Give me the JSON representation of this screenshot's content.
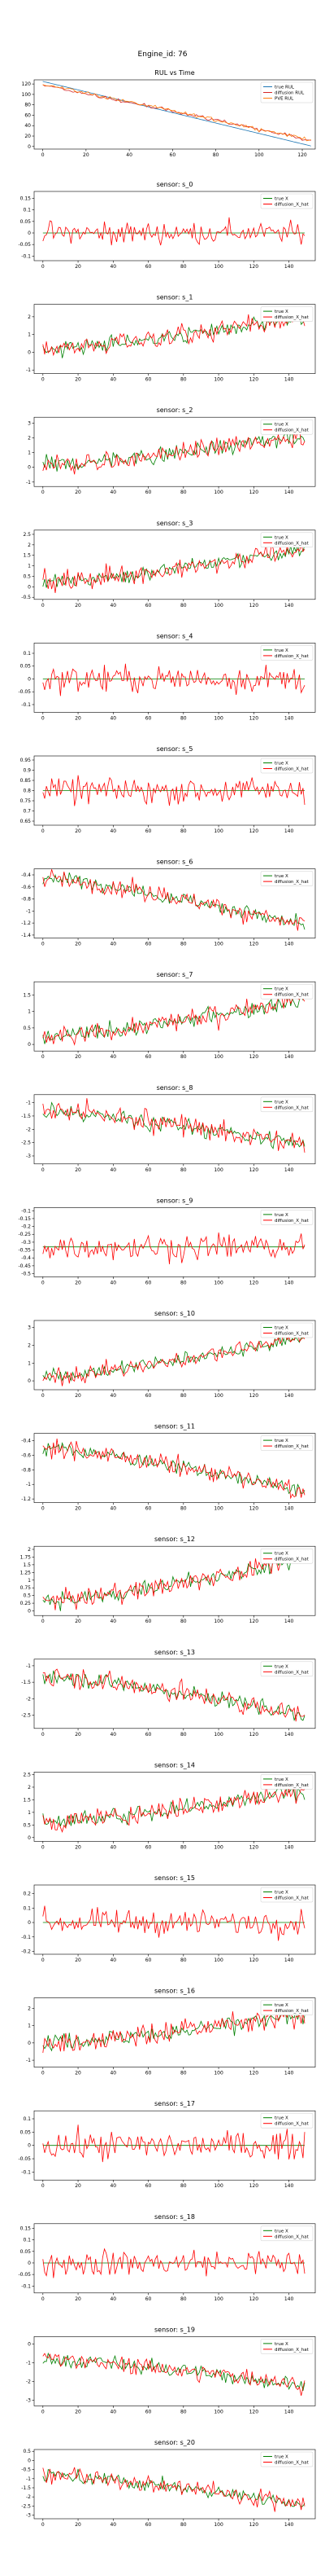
{
  "suptitle": "Engine_id: 76",
  "chart_data": [
    {
      "type": "line",
      "title": "RUL vs Time",
      "n": 125,
      "xticks": [
        0,
        20,
        40,
        60,
        80,
        100,
        120
      ],
      "xlim": [
        -4,
        126
      ],
      "yticks": [
        0,
        20,
        40,
        60,
        80,
        100,
        120
      ],
      "ylim": [
        -5,
        128
      ],
      "legend": [
        "true RUL",
        "diffusion RUL",
        "PVE RUL"
      ],
      "legend_position": "top-right",
      "series": [
        {
          "name": "true RUL",
          "color": "#1f77b4",
          "start": 125,
          "end": 1
        },
        {
          "name": "diffusion RUL",
          "color": "#d62728",
          "start": 119,
          "end": 12
        },
        {
          "name": "PVE RUL",
          "color": "#ff7f0e",
          "start": 120,
          "end": 13
        }
      ]
    },
    {
      "type": "line",
      "title": "sensor: s_0",
      "n": 150,
      "xticks": [
        0,
        20,
        40,
        60,
        80,
        100,
        120,
        140
      ],
      "xlim": [
        -5,
        155
      ],
      "yticks": [
        -0.1,
        -0.05,
        0,
        0.05,
        0.1,
        0.15
      ],
      "ylim": [
        -0.12,
        0.18
      ],
      "trend": [
        0,
        0
      ],
      "noise": 0.045,
      "legend": [
        "true X",
        "diffusion_X_hat"
      ],
      "legend_position": "top-right",
      "true_color": "#008000",
      "pred_color": "#ff0000",
      "flat_true": true
    },
    {
      "type": "line",
      "title": "sensor: s_1",
      "n": 150,
      "xticks": [
        0,
        20,
        40,
        60,
        80,
        100,
        120,
        140
      ],
      "xlim": [
        -5,
        155
      ],
      "yticks": [
        -1,
        0,
        1,
        2
      ],
      "ylim": [
        -1.2,
        2.7
      ],
      "trend": [
        0.2,
        1.9
      ],
      "noise": 0.55,
      "legend": [
        "true X",
        "diffusion_X_hat"
      ],
      "legend_position": "top-right",
      "true_color": "#008000",
      "pred_color": "#ff0000",
      "flat_true": false
    },
    {
      "type": "line",
      "title": "sensor: s_2",
      "n": 150,
      "xticks": [
        0,
        20,
        40,
        60,
        80,
        100,
        120,
        140
      ],
      "xlim": [
        -5,
        155
      ],
      "yticks": [
        -1,
        0,
        1,
        2,
        3
      ],
      "ylim": [
        -1.3,
        3.4
      ],
      "trend": [
        0.1,
        2.2
      ],
      "noise": 0.65,
      "legend": [
        "true X",
        "diffusion_X_hat"
      ],
      "legend_position": "top-right",
      "true_color": "#008000",
      "pred_color": "#ff0000",
      "flat_true": false
    },
    {
      "type": "line",
      "title": "sensor: s_3",
      "n": 150,
      "xticks": [
        0,
        20,
        40,
        60,
        80,
        100,
        120,
        140
      ],
      "xlim": [
        -5,
        155
      ],
      "yticks": [
        -0.5,
        0,
        0.5,
        1,
        1.5,
        2,
        2.5
      ],
      "ylim": [
        -0.6,
        2.7
      ],
      "trend": [
        0.2,
        1.8
      ],
      "noise": 0.45,
      "legend": [
        "true X",
        "diffusion_X_hat"
      ],
      "legend_position": "top-right",
      "true_color": "#008000",
      "pred_color": "#ff0000",
      "flat_true": false
    },
    {
      "type": "line",
      "title": "sensor: s_4",
      "n": 150,
      "xticks": [
        0,
        20,
        40,
        60,
        80,
        100,
        120,
        140
      ],
      "xlim": [
        -5,
        155
      ],
      "yticks": [
        -0.1,
        -0.05,
        0,
        0.05,
        0.1
      ],
      "ylim": [
        -0.13,
        0.14
      ],
      "trend": [
        0,
        0
      ],
      "noise": 0.05,
      "legend": [
        "true X",
        "diffusion_X_hat"
      ],
      "legend_position": "top-right",
      "true_color": "#008000",
      "pred_color": "#ff0000",
      "flat_true": true
    },
    {
      "type": "line",
      "title": "sensor: s_5",
      "n": 150,
      "xticks": [
        0,
        20,
        40,
        60,
        80,
        100,
        120,
        140
      ],
      "xlim": [
        -5,
        155
      ],
      "yticks": [
        0.65,
        0.7,
        0.75,
        0.8,
        0.85,
        0.9,
        0.95
      ],
      "ylim": [
        0.63,
        0.97
      ],
      "trend": [
        0.8,
        0.8
      ],
      "noise": 0.06,
      "legend": [
        "true X",
        "diffusion_X_hat"
      ],
      "legend_position": "top-right",
      "true_color": "#008000",
      "pred_color": "#ff0000",
      "flat_true": true
    },
    {
      "type": "line",
      "title": "sensor: s_6",
      "n": 150,
      "xticks": [
        0,
        20,
        40,
        60,
        80,
        100,
        120,
        140
      ],
      "xlim": [
        -5,
        155
      ],
      "yticks": [
        -1.4,
        -1.2,
        -1,
        -0.8,
        -0.6,
        -0.4
      ],
      "ylim": [
        -1.45,
        -0.3
      ],
      "trend": [
        -0.45,
        -1.25
      ],
      "noise": 0.14,
      "legend": [
        "true X",
        "diffusion_X_hat"
      ],
      "legend_position": "top-right",
      "true_color": "#008000",
      "pred_color": "#ff0000",
      "flat_true": false
    },
    {
      "type": "line",
      "title": "sensor: s_7",
      "n": 150,
      "xticks": [
        0,
        20,
        40,
        60,
        80,
        100,
        120,
        140
      ],
      "xlim": [
        -5,
        155
      ],
      "yticks": [
        0,
        0.5,
        1,
        1.5
      ],
      "ylim": [
        -0.2,
        1.9
      ],
      "trend": [
        0.2,
        1.4
      ],
      "noise": 0.3,
      "legend": [
        "true X",
        "diffusion_X_hat"
      ],
      "legend_position": "top-right",
      "true_color": "#008000",
      "pred_color": "#ff0000",
      "flat_true": false
    },
    {
      "type": "line",
      "title": "sensor: s_8",
      "n": 150,
      "xticks": [
        0,
        20,
        40,
        60,
        80,
        100,
        120,
        140
      ],
      "xlim": [
        -5,
        155
      ],
      "yticks": [
        -3,
        -2.5,
        -2,
        -1.5,
        -1
      ],
      "ylim": [
        -3.3,
        -0.7
      ],
      "trend": [
        -1.3,
        -2.6
      ],
      "noise": 0.4,
      "legend": [
        "true X",
        "diffusion_X_hat"
      ],
      "legend_position": "top-right",
      "true_color": "#008000",
      "pred_color": "#ff0000",
      "flat_true": false
    },
    {
      "type": "line",
      "title": "sensor: s_9",
      "n": 150,
      "xticks": [
        0,
        20,
        40,
        60,
        80,
        100,
        120,
        140
      ],
      "xlim": [
        -5,
        155
      ],
      "yticks": [
        -0.5,
        -0.45,
        -0.4,
        -0.35,
        -0.3,
        -0.25,
        -0.2,
        -0.15,
        -0.1
      ],
      "ylim": [
        -0.52,
        -0.08
      ],
      "trend": [
        -0.33,
        -0.33
      ],
      "noise": 0.08,
      "legend": [
        "true X",
        "diffusion_X_hat"
      ],
      "legend_position": "top-right",
      "true_color": "#008000",
      "pred_color": "#ff0000",
      "flat_true": true
    },
    {
      "type": "line",
      "title": "sensor: s_10",
      "n": 150,
      "xticks": [
        0,
        20,
        40,
        60,
        80,
        100,
        120,
        140
      ],
      "xlim": [
        -5,
        155
      ],
      "yticks": [
        0,
        1,
        2,
        3
      ],
      "ylim": [
        -0.5,
        3.4
      ],
      "trend": [
        0.2,
        2.5
      ],
      "noise": 0.45,
      "legend": [
        "true X",
        "diffusion_X_hat"
      ],
      "legend_position": "top-right",
      "true_color": "#008000",
      "pred_color": "#ff0000",
      "flat_true": false
    },
    {
      "type": "line",
      "title": "sensor: s_11",
      "n": 150,
      "xticks": [
        0,
        20,
        40,
        60,
        80,
        100,
        120,
        140
      ],
      "xlim": [
        -5,
        155
      ],
      "yticks": [
        -1.2,
        -1,
        -0.8,
        -0.6,
        -0.4
      ],
      "ylim": [
        -1.25,
        -0.3
      ],
      "trend": [
        -0.5,
        -1.1
      ],
      "noise": 0.12,
      "legend": [
        "true X",
        "diffusion_X_hat"
      ],
      "legend_position": "top-right",
      "true_color": "#008000",
      "pred_color": "#ff0000",
      "flat_true": false
    },
    {
      "type": "line",
      "title": "sensor: s_12",
      "n": 150,
      "xticks": [
        0,
        20,
        40,
        60,
        80,
        100,
        120,
        140
      ],
      "xlim": [
        -5,
        155
      ],
      "yticks": [
        0,
        0.25,
        0.5,
        0.75,
        1,
        1.25,
        1.5,
        1.75,
        2
      ],
      "ylim": [
        -0.15,
        2.1
      ],
      "trend": [
        0.3,
        1.7
      ],
      "noise": 0.3,
      "legend": [
        "true X",
        "diffusion_X_hat"
      ],
      "legend_position": "top-right",
      "true_color": "#008000",
      "pred_color": "#ff0000",
      "flat_true": false
    },
    {
      "type": "line",
      "title": "sensor: s_13",
      "n": 150,
      "xticks": [
        0,
        20,
        40,
        60,
        80,
        100,
        120,
        140
      ],
      "xlim": [
        -5,
        155
      ],
      "yticks": [
        -2.5,
        -2,
        -1.5,
        -1
      ],
      "ylim": [
        -2.9,
        -0.8
      ],
      "trend": [
        -1.3,
        -2.5
      ],
      "noise": 0.3,
      "legend": [
        "true X",
        "diffusion_X_hat"
      ],
      "legend_position": "top-right",
      "true_color": "#008000",
      "pred_color": "#ff0000",
      "flat_true": false
    },
    {
      "type": "line",
      "title": "sensor: s_14",
      "n": 150,
      "xticks": [
        0,
        20,
        40,
        60,
        80,
        100,
        120,
        140
      ],
      "xlim": [
        -5,
        155
      ],
      "yticks": [
        0,
        0.5,
        1,
        1.5,
        2,
        2.5
      ],
      "ylim": [
        -0.15,
        2.6
      ],
      "trend": [
        0.6,
        1.9
      ],
      "noise": 0.4,
      "legend": [
        "true X",
        "diffusion_X_hat"
      ],
      "legend_position": "top-right",
      "true_color": "#008000",
      "pred_color": "#ff0000",
      "flat_true": false
    },
    {
      "type": "line",
      "title": "sensor: s_15",
      "n": 150,
      "xticks": [
        0,
        20,
        40,
        60,
        80,
        100,
        120,
        140
      ],
      "xlim": [
        -5,
        155
      ],
      "yticks": [
        -0.2,
        -0.1,
        0,
        0.1,
        0.2
      ],
      "ylim": [
        -0.22,
        0.26
      ],
      "trend": [
        0,
        0
      ],
      "noise": 0.08,
      "legend": [
        "true X",
        "diffusion_X_hat"
      ],
      "legend_position": "top-right",
      "true_color": "#008000",
      "pred_color": "#ff0000",
      "flat_true": true
    },
    {
      "type": "line",
      "title": "sensor: s_16",
      "n": 150,
      "xticks": [
        0,
        20,
        40,
        60,
        80,
        100,
        120,
        140
      ],
      "xlim": [
        -5,
        155
      ],
      "yticks": [
        -1,
        0,
        1,
        2
      ],
      "ylim": [
        -1.4,
        2.6
      ],
      "trend": [
        0,
        1.6
      ],
      "noise": 0.6,
      "legend": [
        "true X",
        "diffusion_X_hat"
      ],
      "legend_position": "top-right",
      "true_color": "#008000",
      "pred_color": "#ff0000",
      "flat_true": false
    },
    {
      "type": "line",
      "title": "sensor: s_17",
      "n": 150,
      "xticks": [
        0,
        20,
        40,
        60,
        80,
        100,
        120,
        140
      ],
      "xlim": [
        -5,
        155
      ],
      "yticks": [
        -0.1,
        -0.05,
        0,
        0.05,
        0.1
      ],
      "ylim": [
        -0.13,
        0.13
      ],
      "trend": [
        0,
        0
      ],
      "noise": 0.05,
      "legend": [
        "true X",
        "diffusion_X_hat"
      ],
      "legend_position": "top-right",
      "true_color": "#008000",
      "pred_color": "#ff0000",
      "flat_true": true
    },
    {
      "type": "line",
      "title": "sensor: s_18",
      "n": 150,
      "xticks": [
        0,
        20,
        40,
        60,
        80,
        100,
        120,
        140
      ],
      "xlim": [
        -5,
        155
      ],
      "yticks": [
        -0.1,
        -0.05,
        0,
        0.05,
        0.1,
        0.15
      ],
      "ylim": [
        -0.13,
        0.17
      ],
      "trend": [
        0,
        0
      ],
      "noise": 0.055,
      "legend": [
        "true X",
        "diffusion_X_hat"
      ],
      "legend_position": "top-right",
      "true_color": "#008000",
      "pred_color": "#ff0000",
      "flat_true": true
    },
    {
      "type": "line",
      "title": "sensor: s_19",
      "n": 150,
      "xticks": [
        0,
        20,
        40,
        60,
        80,
        100,
        120,
        140
      ],
      "xlim": [
        -5,
        155
      ],
      "yticks": [
        -3,
        -2,
        -1,
        0
      ],
      "ylim": [
        -3.3,
        0.4
      ],
      "trend": [
        -0.8,
        -2.2
      ],
      "noise": 0.45,
      "legend": [
        "true X",
        "diffusion_X_hat"
      ],
      "legend_position": "top-right",
      "true_color": "#008000",
      "pred_color": "#ff0000",
      "flat_true": false
    },
    {
      "type": "line",
      "title": "sensor: s_20",
      "n": 150,
      "xticks": [
        0,
        20,
        40,
        60,
        80,
        100,
        120,
        140
      ],
      "xlim": [
        -5,
        155
      ],
      "yticks": [
        -3,
        -2.5,
        -2,
        -1.5,
        -1,
        -0.5,
        0,
        0.5
      ],
      "ylim": [
        -3.2,
        0.6
      ],
      "trend": [
        -0.8,
        -2.4
      ],
      "noise": 0.45,
      "legend": [
        "true X",
        "diffusion_X_hat"
      ],
      "legend_position": "top-right",
      "true_color": "#008000",
      "pred_color": "#ff0000",
      "flat_true": false
    }
  ]
}
